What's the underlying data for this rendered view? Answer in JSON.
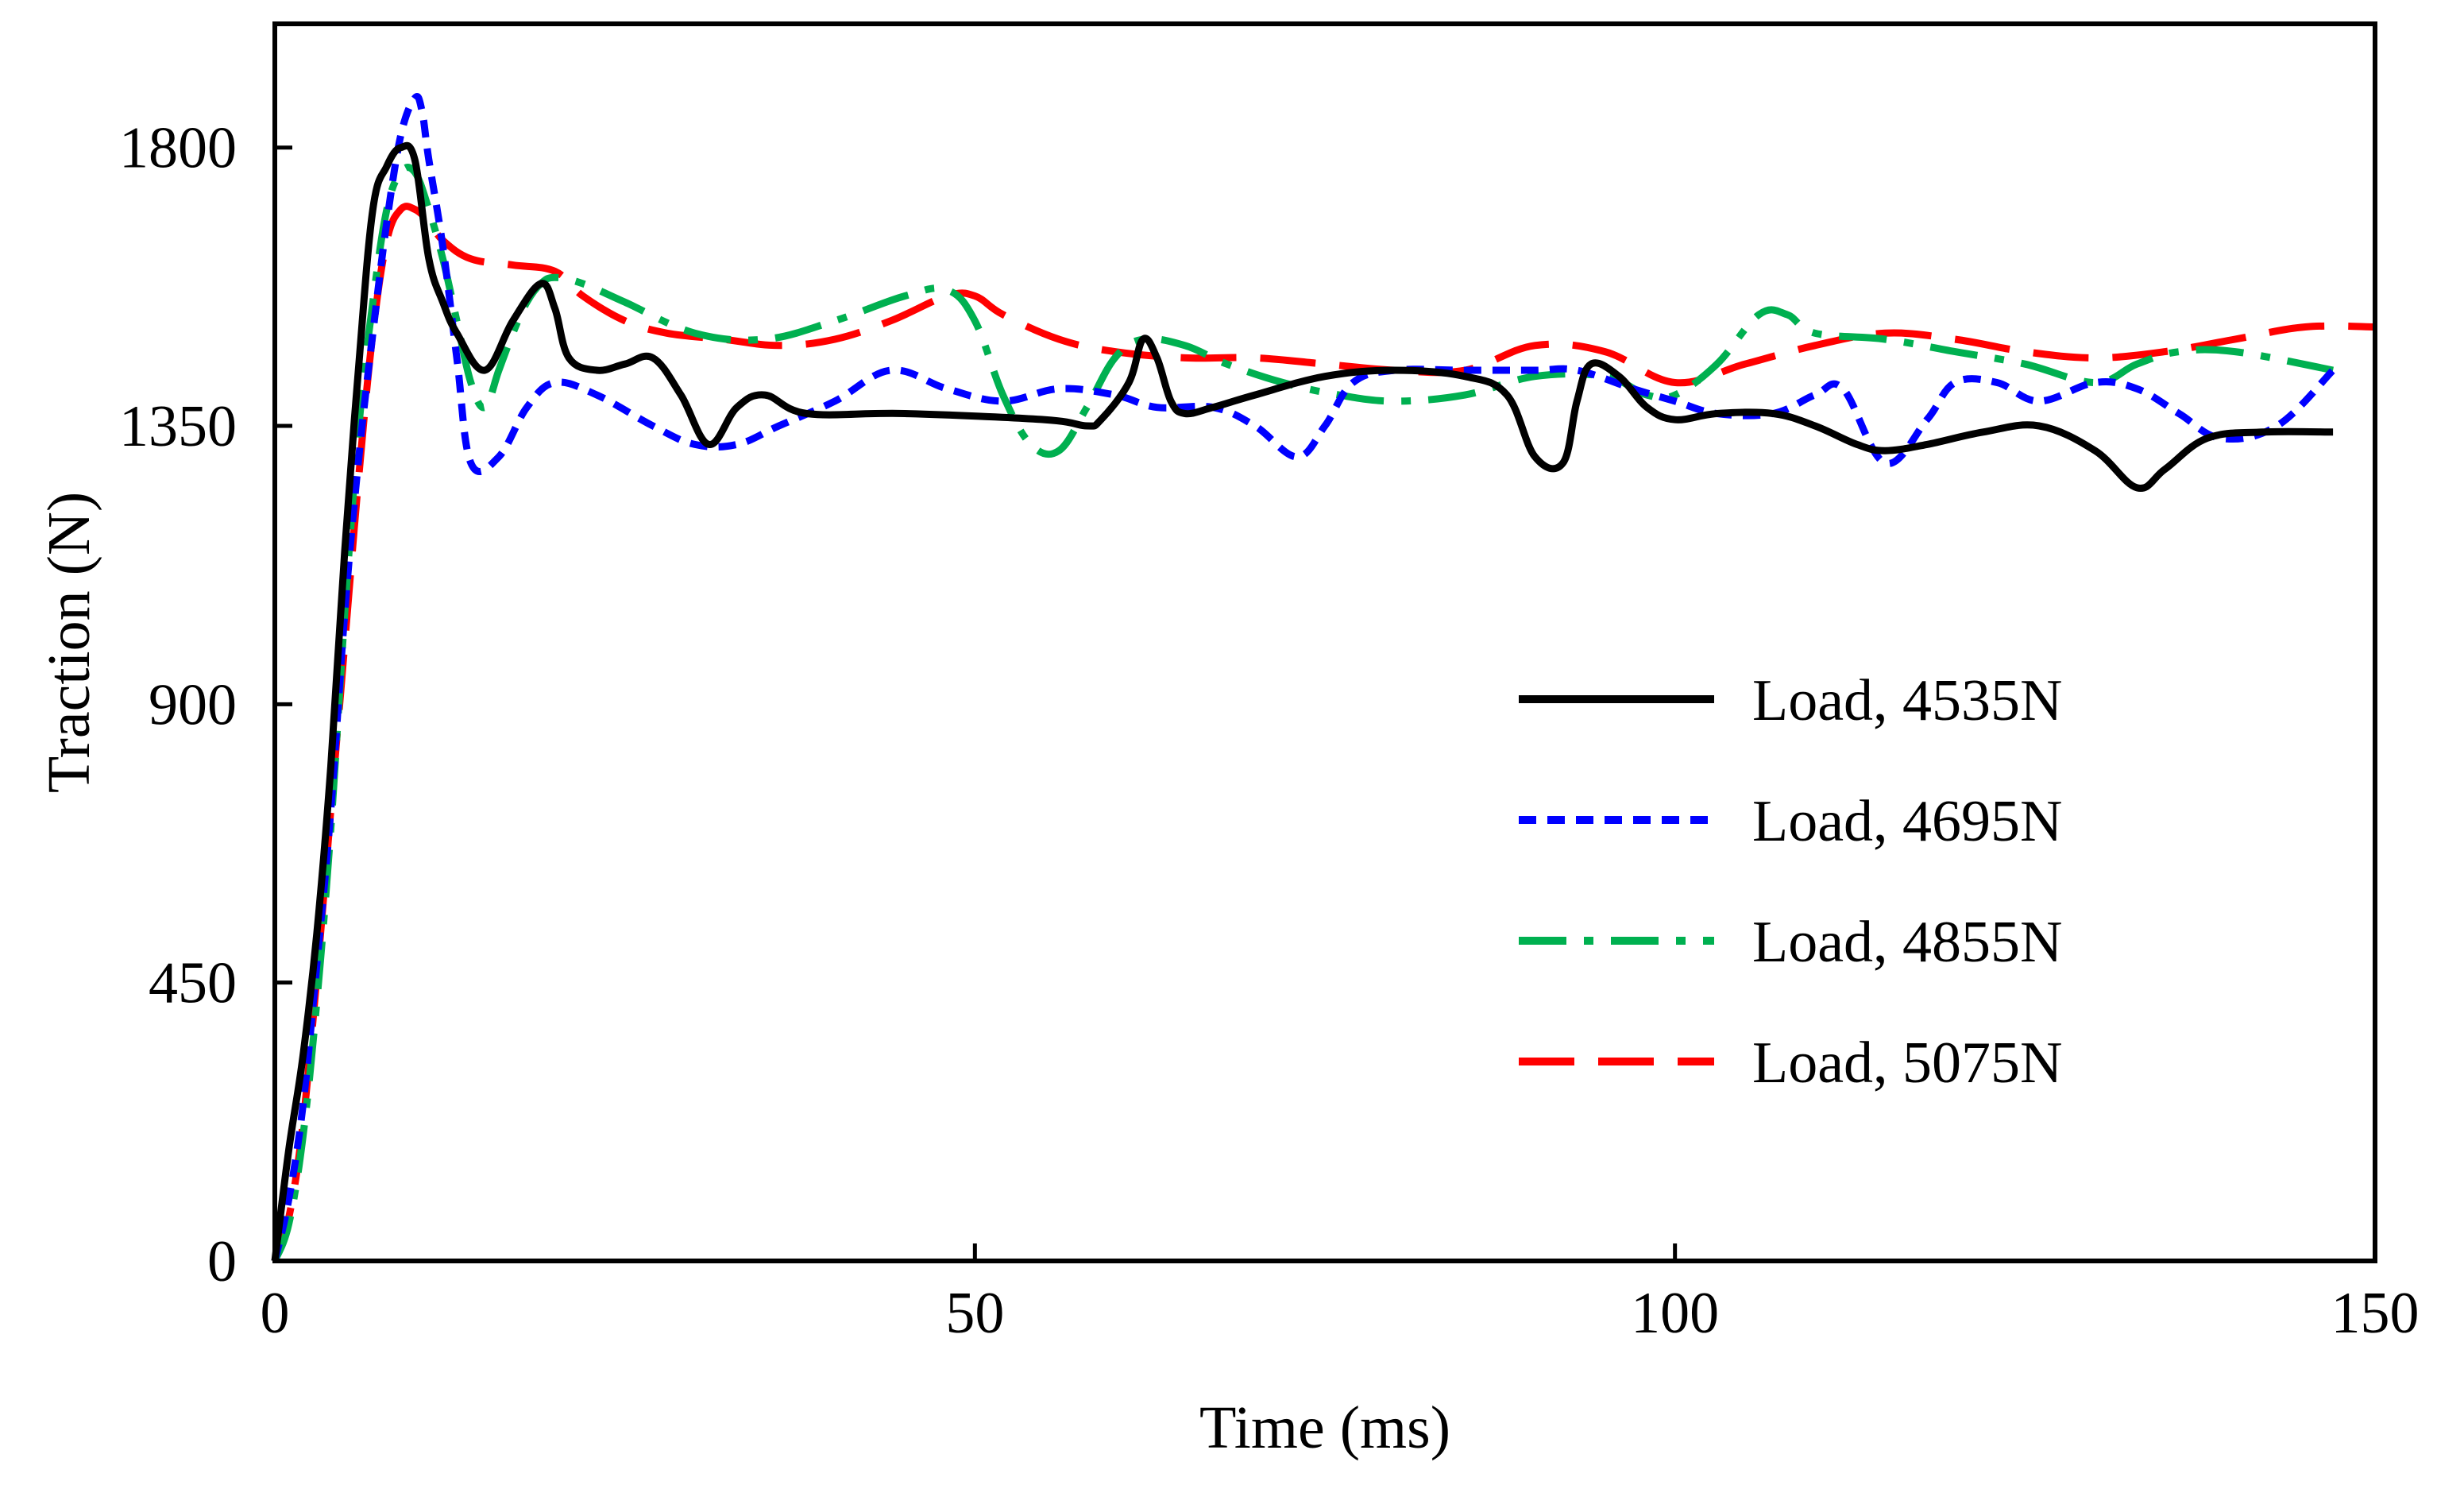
{
  "chart_data": {
    "type": "line",
    "title": "",
    "xlabel": "Time (ms)",
    "ylabel": "Traction (N)",
    "xlim": [
      0,
      150
    ],
    "ylim": [
      0,
      2000
    ],
    "xticks": [
      0,
      50,
      100,
      150
    ],
    "xtick_labels": [
      "0",
      "50",
      "100",
      "150"
    ],
    "yticks": [
      0,
      450,
      900,
      1350,
      1800
    ],
    "ytick_labels": [
      "0",
      "450",
      "900",
      "1350",
      "1800"
    ],
    "grid": false,
    "legend_position": "center-right",
    "series": [
      {
        "name": "Load, 4535N",
        "color": "#000000",
        "dash": "solid",
        "x": [
          0,
          1,
          2,
          3,
          4,
          5,
          6,
          7,
          8,
          9,
          10,
          11,
          12,
          13,
          15,
          17,
          19,
          20,
          21,
          23,
          25,
          27,
          29,
          31,
          33,
          35,
          38,
          45,
          55,
          58,
          59,
          61,
          62,
          63,
          64,
          65,
          67,
          70,
          75,
          80,
          85,
          88,
          90,
          92,
          93,
          94,
          96,
          98,
          100,
          103,
          107,
          110,
          113,
          115,
          118,
          122,
          126,
          130,
          133,
          135,
          138,
          142,
          147
        ],
        "y": [
          0,
          180,
          330,
          530,
          800,
          1150,
          1450,
          1700,
          1770,
          1800,
          1780,
          1620,
          1550,
          1500,
          1440,
          1520,
          1580,
          1540,
          1460,
          1440,
          1450,
          1460,
          1400,
          1320,
          1380,
          1400,
          1370,
          1370,
          1360,
          1350,
          1360,
          1420,
          1490,
          1460,
          1390,
          1370,
          1380,
          1400,
          1430,
          1440,
          1430,
          1400,
          1300,
          1290,
          1390,
          1450,
          1430,
          1380,
          1360,
          1370,
          1370,
          1350,
          1320,
          1310,
          1320,
          1340,
          1350,
          1310,
          1250,
          1280,
          1330,
          1340,
          1340
        ]
      },
      {
        "name": "Load, 4695N",
        "color": "#0000ff",
        "dash": "short",
        "x": [
          0,
          1,
          2,
          3,
          4,
          5,
          6,
          7,
          8,
          9,
          10,
          10.5,
          11,
          12,
          13,
          14,
          16,
          18,
          20,
          23,
          27,
          30,
          33,
          36,
          40,
          44,
          48,
          52,
          56,
          60,
          63,
          67,
          70,
          73,
          75,
          77,
          80,
          85,
          90,
          93,
          97,
          100,
          103,
          107,
          110,
          112,
          115,
          118,
          120,
          123,
          126,
          130,
          133,
          136,
          139,
          143,
          147
        ],
        "y": [
          0,
          100,
          250,
          480,
          730,
          1050,
          1300,
          1500,
          1680,
          1820,
          1880,
          1860,
          1780,
          1640,
          1460,
          1290,
          1300,
          1380,
          1420,
          1400,
          1350,
          1320,
          1320,
          1350,
          1390,
          1440,
          1410,
          1390,
          1410,
          1400,
          1380,
          1380,
          1350,
          1300,
          1350,
          1420,
          1440,
          1440,
          1440,
          1440,
          1410,
          1390,
          1370,
          1370,
          1400,
          1410,
          1290,
          1360,
          1420,
          1420,
          1390,
          1420,
          1410,
          1370,
          1330,
          1350,
          1440
        ]
      },
      {
        "name": "Load, 4855N",
        "color": "#00b050",
        "dash": "dashdot",
        "x": [
          0,
          1,
          2,
          3,
          4,
          5,
          6,
          7,
          8,
          9,
          10,
          11,
          12,
          13,
          14,
          15,
          16,
          17,
          18,
          19,
          20,
          22,
          25,
          30,
          35,
          40,
          45,
          48,
          50,
          52,
          54,
          56,
          58,
          60,
          62,
          65,
          68,
          72,
          76,
          80,
          85,
          90,
          95,
          98,
          100,
          103,
          106,
          108,
          110,
          115,
          120,
          125,
          130,
          133,
          136,
          140,
          147
        ],
        "y": [
          0,
          60,
          200,
          420,
          700,
          1050,
          1350,
          1550,
          1700,
          1760,
          1760,
          1700,
          1620,
          1520,
          1420,
          1380,
          1440,
          1500,
          1550,
          1580,
          1590,
          1580,
          1550,
          1500,
          1490,
          1520,
          1560,
          1570,
          1520,
          1400,
          1320,
          1310,
          1380,
          1460,
          1490,
          1480,
          1450,
          1420,
          1400,
          1390,
          1400,
          1430,
          1430,
          1400,
          1400,
          1450,
          1530,
          1530,
          1500,
          1490,
          1470,
          1450,
          1420,
          1450,
          1470,
          1470,
          1440
        ]
      },
      {
        "name": "Load, 5075N",
        "color": "#ff0000",
        "dash": "long",
        "x": [
          0,
          1,
          2,
          3,
          4,
          5,
          6,
          7,
          8,
          9,
          10,
          11,
          12,
          14,
          17,
          20,
          22,
          25,
          28,
          32,
          36,
          40,
          44,
          48,
          50,
          52,
          56,
          60,
          65,
          70,
          75,
          80,
          85,
          90,
          95,
          100,
          105,
          110,
          115,
          120,
          125,
          130,
          135,
          140,
          145,
          150
        ],
        "y": [
          0,
          70,
          220,
          460,
          730,
          1000,
          1270,
          1500,
          1650,
          1700,
          1700,
          1680,
          1650,
          1620,
          1610,
          1600,
          1560,
          1520,
          1500,
          1490,
          1480,
          1490,
          1520,
          1560,
          1560,
          1530,
          1490,
          1470,
          1460,
          1460,
          1450,
          1440,
          1440,
          1480,
          1470,
          1420,
          1450,
          1480,
          1500,
          1490,
          1470,
          1460,
          1470,
          1490,
          1510,
          1510
        ]
      }
    ]
  }
}
